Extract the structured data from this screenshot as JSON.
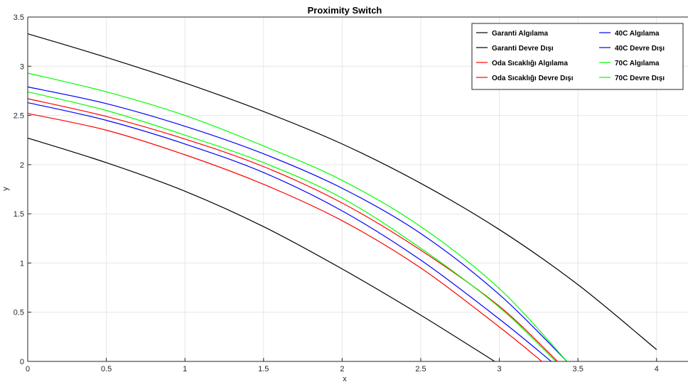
{
  "chart_data": {
    "type": "line",
    "title": "Proximity Switch",
    "xlabel": "x",
    "ylabel": "y",
    "xlim": [
      0,
      4.2
    ],
    "ylim": [
      0,
      3.5
    ],
    "xticks": [
      0,
      0.5,
      1,
      1.5,
      2,
      2.5,
      3,
      3.5,
      4
    ],
    "yticks": [
      0,
      0.5,
      1,
      1.5,
      2,
      2.5,
      3,
      3.5
    ],
    "xtick_labels": [
      "0",
      "0.5",
      "1",
      "1.5",
      "2",
      "2.5",
      "3",
      "3.5",
      "4"
    ],
    "ytick_labels": [
      "0",
      "0.5",
      "1",
      "1.5",
      "2",
      "2.5",
      "3",
      "3.5"
    ],
    "grid": true,
    "legend_position": "top-right",
    "series": [
      {
        "name": "Garanti Algılama",
        "color": "#000000",
        "x": [
          0,
          0.5,
          1,
          1.5,
          2,
          2.5,
          3,
          3.5,
          4
        ],
        "y": [
          3.33,
          3.09,
          2.83,
          2.54,
          2.21,
          1.81,
          1.34,
          0.78,
          0.12
        ]
      },
      {
        "name": "Garanti Devre Dışı",
        "color": "#000000",
        "x": [
          0,
          0.5,
          1,
          1.5,
          2,
          2.5,
          2.97
        ],
        "y": [
          2.27,
          2.02,
          1.73,
          1.37,
          0.94,
          0.47,
          0
        ]
      },
      {
        "name": "Oda Sıcaklığı Algılama",
        "color": "#ff0000",
        "x": [
          0,
          0.5,
          1,
          1.5,
          2,
          2.5,
          3,
          3.37
        ],
        "y": [
          2.67,
          2.49,
          2.26,
          1.98,
          1.61,
          1.13,
          0.56,
          0
        ]
      },
      {
        "name": "Oda Sıcaklığı Devre Dışı",
        "color": "#ff0000",
        "x": [
          0,
          0.5,
          1,
          1.5,
          2,
          2.5,
          3,
          3.27
        ],
        "y": [
          2.52,
          2.35,
          2.1,
          1.8,
          1.43,
          0.95,
          0.35,
          0
        ]
      },
      {
        "name": "40C Algılama",
        "color": "#0000ff",
        "x": [
          0,
          0.5,
          1,
          1.5,
          2,
          2.5,
          3,
          3.43
        ],
        "y": [
          2.79,
          2.62,
          2.39,
          2.11,
          1.76,
          1.3,
          0.68,
          0
        ]
      },
      {
        "name": "40C Devre Dışı",
        "color": "#0000ff",
        "x": [
          0,
          0.5,
          1,
          1.5,
          2,
          2.5,
          3,
          3.33
        ],
        "y": [
          2.63,
          2.45,
          2.21,
          1.92,
          1.53,
          1.03,
          0.43,
          0
        ]
      },
      {
        "name": "70C Algılama",
        "color": "#00ff00",
        "x": [
          0,
          0.5,
          1,
          1.5,
          2,
          2.5,
          3,
          3.43
        ],
        "y": [
          2.93,
          2.74,
          2.5,
          2.19,
          1.84,
          1.37,
          0.74,
          0
        ]
      },
      {
        "name": "70C Devre Dışı",
        "color": "#00ff00",
        "x": [
          0,
          0.5,
          1,
          1.5,
          2,
          2.5,
          3,
          3.36
        ],
        "y": [
          2.74,
          2.55,
          2.3,
          2.02,
          1.66,
          1.15,
          0.55,
          0
        ]
      }
    ]
  }
}
